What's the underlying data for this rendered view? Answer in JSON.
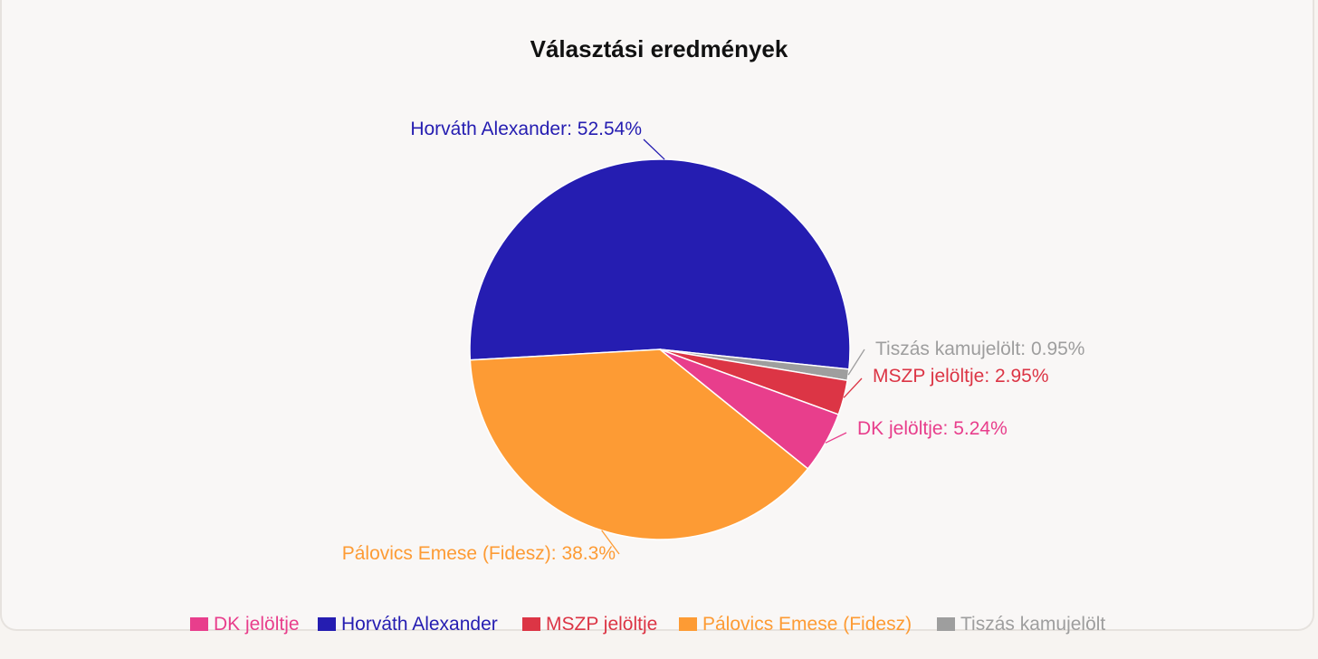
{
  "chart_data": {
    "type": "pie",
    "title": "Választási eredmények",
    "slices": [
      {
        "name": "Horváth Alexander",
        "value": 52.54,
        "label": "Horváth Alexander: 52.54%",
        "color": "#251db1"
      },
      {
        "name": "Tiszás kamujelölt",
        "value": 0.95,
        "label": "Tiszás kamujelölt: 0.95%",
        "color": "#9e9e9e"
      },
      {
        "name": "MSZP jelöltje",
        "value": 2.95,
        "label": "MSZP jelöltje: 2.95%",
        "color": "#dc3545"
      },
      {
        "name": "DK jelöltje",
        "value": 5.24,
        "label": "DK jelöltje: 5.24%",
        "color": "#e83e8c"
      },
      {
        "name": "Pálovics Emese (Fidesz)",
        "value": 38.3,
        "label": "Pálovics Emese (Fidesz): 38.3%",
        "color": "#fd9b34"
      }
    ],
    "legend": {
      "placement": "bottom",
      "items": [
        {
          "label": "DK jelöltje",
          "color": "#e83e8c"
        },
        {
          "label": "Horváth Alexander",
          "color": "#251db1"
        },
        {
          "label": "MSZP jelöltje",
          "color": "#dc3545"
        },
        {
          "label": "Pálovics Emese (Fidesz)",
          "color": "#fd9b34"
        },
        {
          "label": "Tiszás kamujelölt",
          "color": "#9e9e9e"
        }
      ]
    }
  }
}
